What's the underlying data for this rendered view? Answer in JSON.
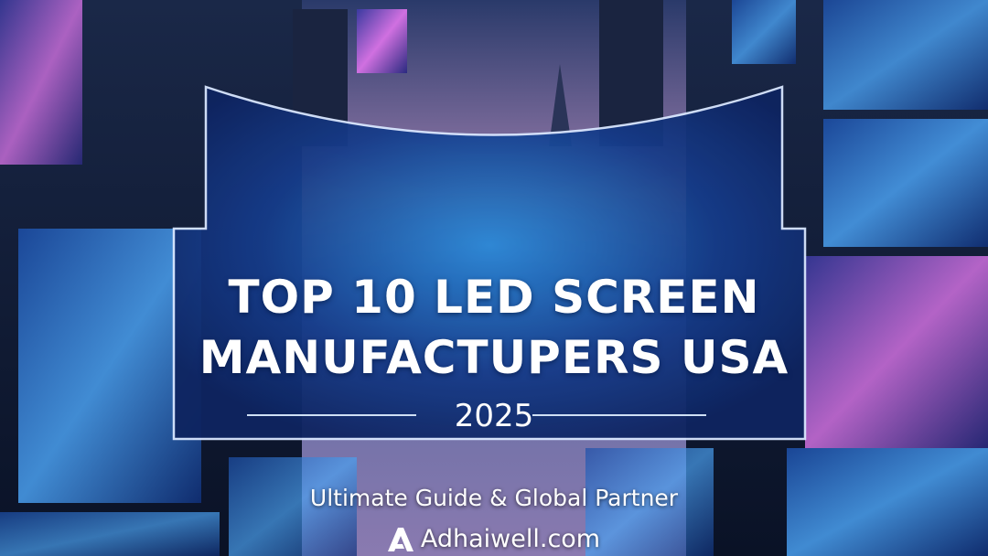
{
  "banner": {
    "title_line1": "TOP 10 LED SCREEN",
    "title_line2": "MANUFACTUPERS USA",
    "year": "2025",
    "subtitle": "Ultimate Guide & Global Partner",
    "brand": "Adhaiwell.com",
    "logo_icon": "adhaiwell-a-logo-icon"
  },
  "colors": {
    "sky_glow": "#f0a070",
    "screen_blue": "#2a6fd6",
    "screen_purple": "#b05ad8",
    "text": "#ffffff"
  }
}
